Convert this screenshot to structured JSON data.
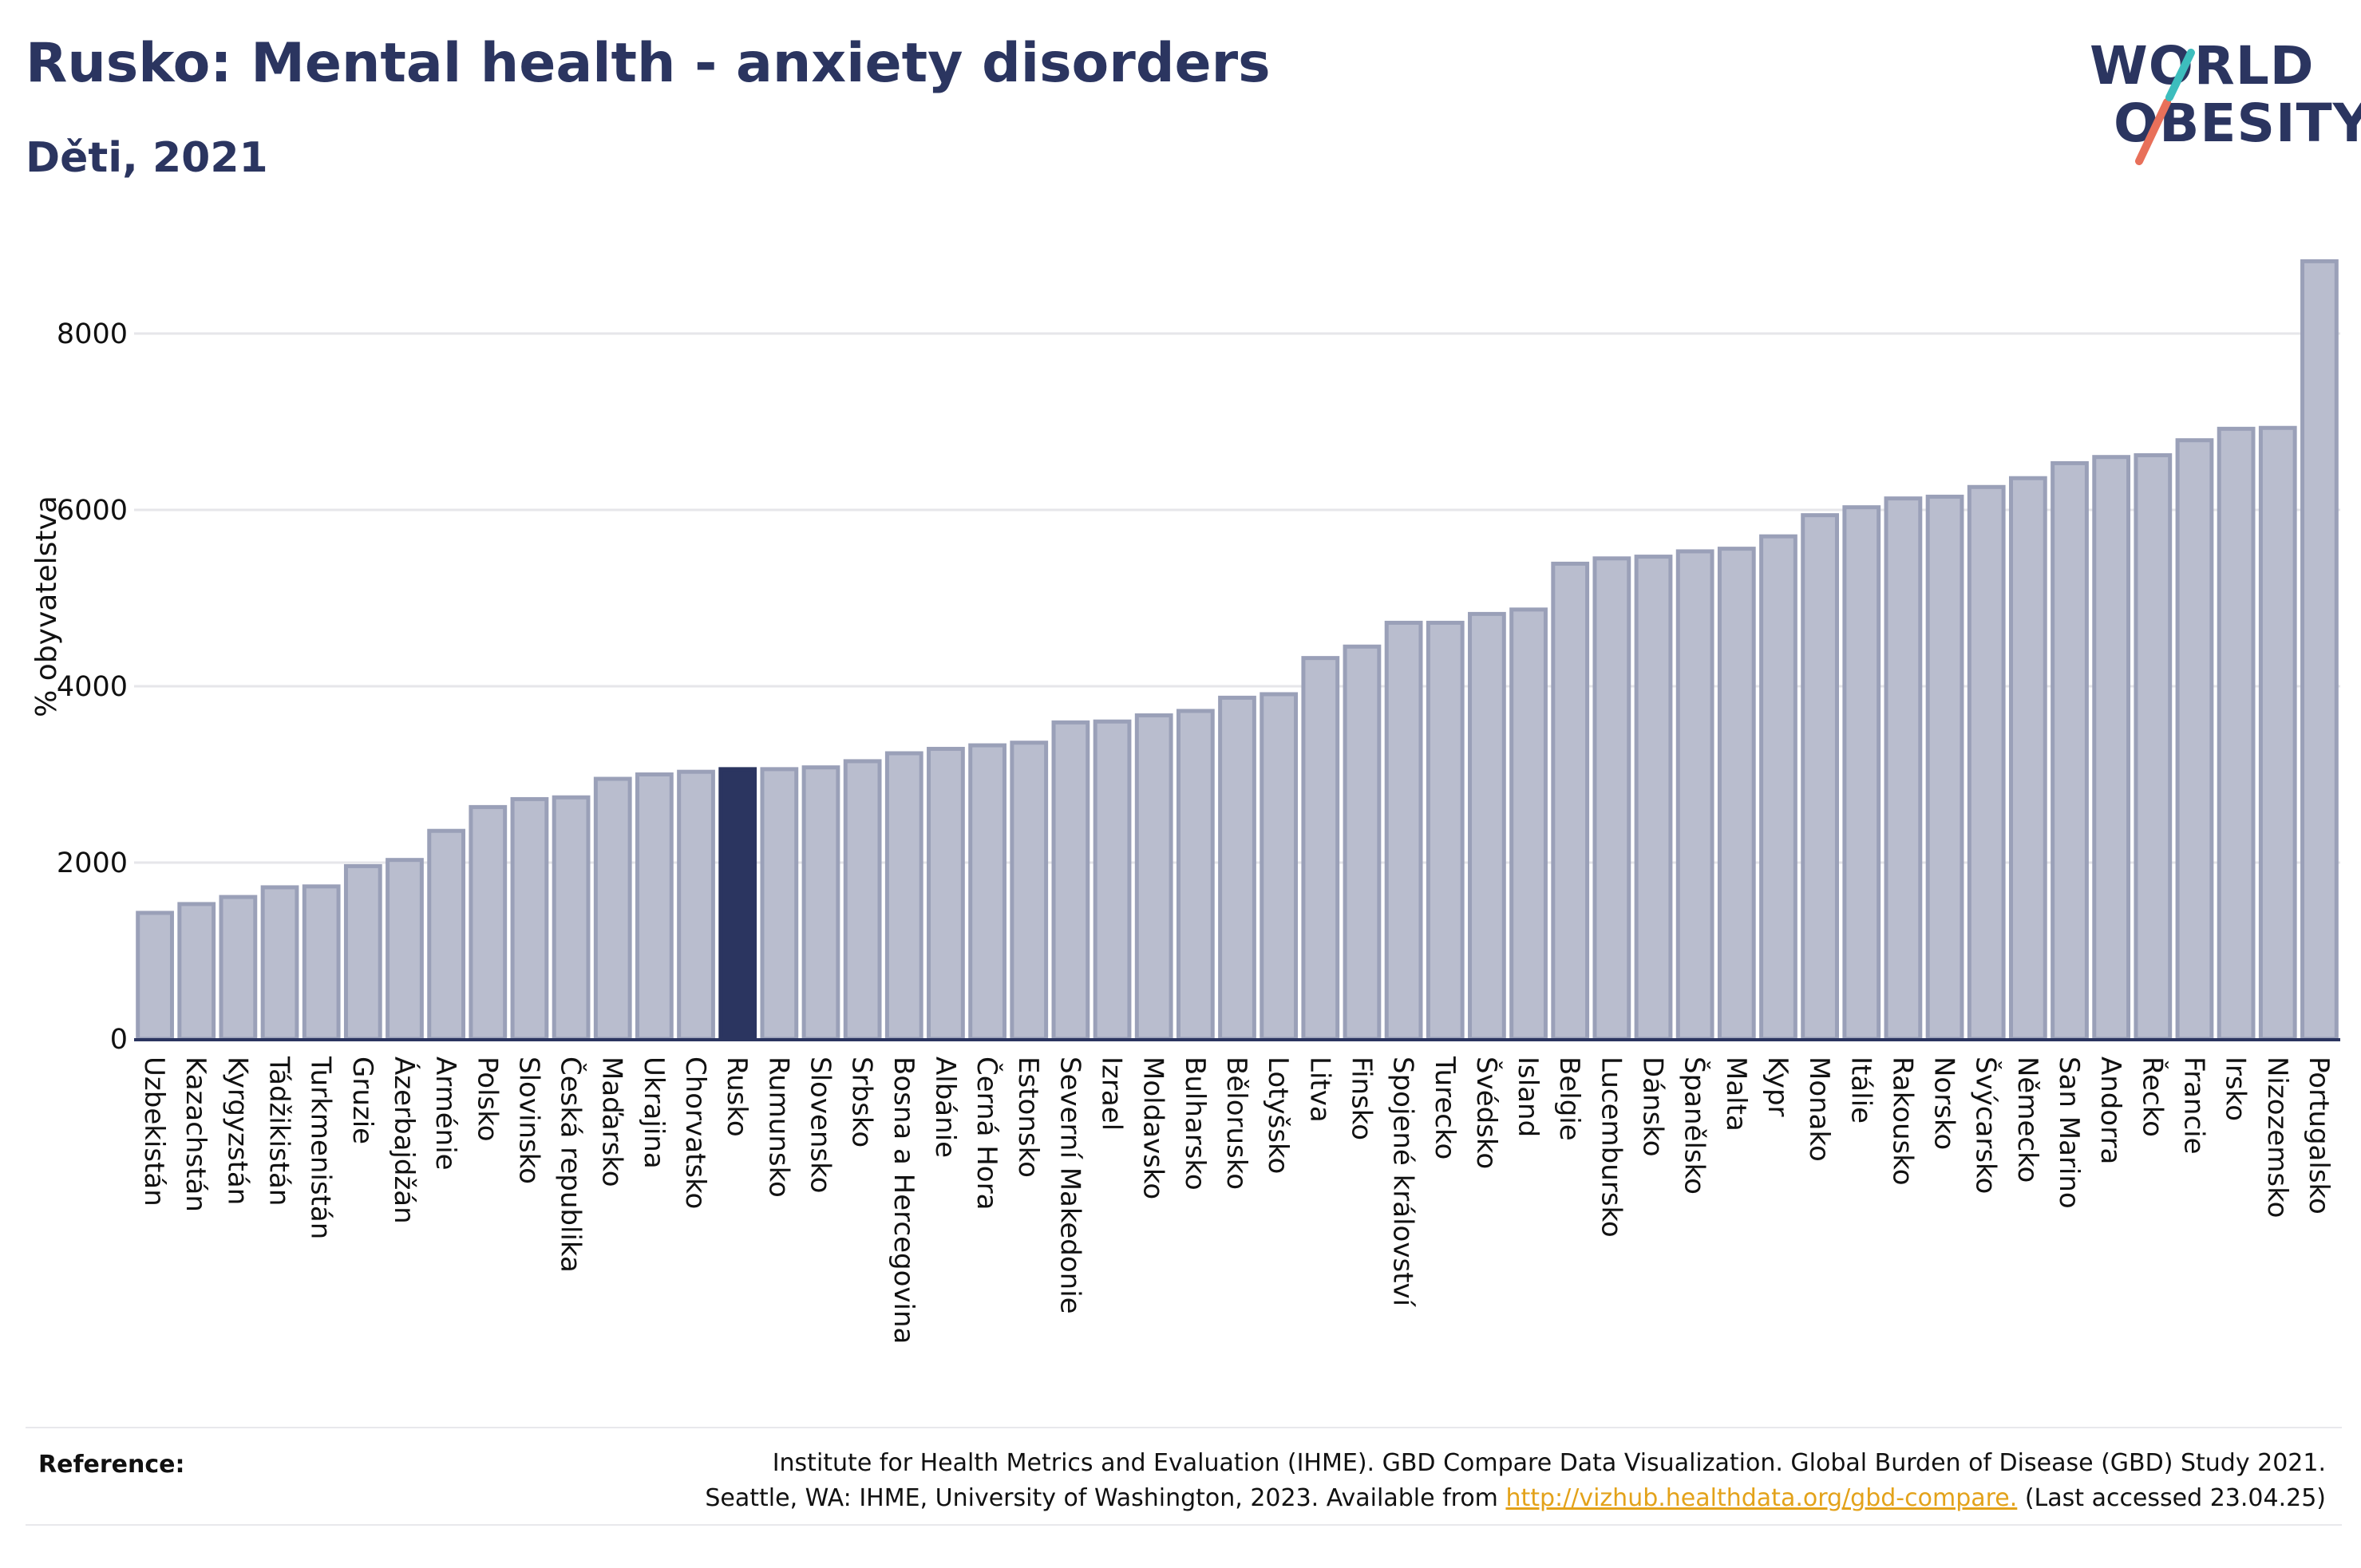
{
  "header": {
    "title": "Rusko: Mental health - anxiety disorders",
    "subtitle": "Děti, 2021"
  },
  "logo": {
    "line1": "WORLD",
    "line2": "OBESITY"
  },
  "colors": {
    "bar": "#b9bdce",
    "bar_stroke": "#9aa0b8",
    "highlight": "#2b3560",
    "text": "#2b3560",
    "grid": "#e6e6ea",
    "logo_teal": "#3dbdbd",
    "logo_coral": "#e8705a",
    "link": "#e3a21a"
  },
  "chart_data": {
    "type": "bar",
    "ylabel": "% obyvatelstva",
    "ylim": [
      0,
      9000
    ],
    "yticks": [
      0,
      2000,
      4000,
      6000,
      8000
    ],
    "highlight": "Rusko",
    "grid": true,
    "categories": [
      "Uzbekistán",
      "Kazachstán",
      "Kyrgyzstán",
      "Tádžikistán",
      "Turkmenistán",
      "Gruzie",
      "Ázerbajdžán",
      "Arménie",
      "Polsko",
      "Slovinsko",
      "Česká republika",
      "Maďarsko",
      "Ukrajina",
      "Chorvatsko",
      "Rusko",
      "Rumunsko",
      "Slovensko",
      "Srbsko",
      "Bosna a Hercegovina",
      "Albánie",
      "Černá Hora",
      "Estonsko",
      "Severní Makedonie",
      "Izrael",
      "Moldavsko",
      "Bulharsko",
      "Bělorusko",
      "Lotyšsko",
      "Litva",
      "Finsko",
      "Spojené království",
      "Turecko",
      "Švédsko",
      "Island",
      "Belgie",
      "Lucembursko",
      "Dánsko",
      "Španělsko",
      "Malta",
      "Kypr",
      "Monako",
      "Itálie",
      "Rakousko",
      "Norsko",
      "Švýcarsko",
      "Německo",
      "San Marino",
      "Andorra",
      "Řecko",
      "Francie",
      "Irsko",
      "Nizozemsko",
      "Portugalsko"
    ],
    "values": [
      1430,
      1530,
      1610,
      1720,
      1730,
      1960,
      2030,
      2360,
      2630,
      2720,
      2740,
      2950,
      3000,
      3030,
      3060,
      3060,
      3080,
      3150,
      3240,
      3290,
      3330,
      3360,
      3590,
      3600,
      3670,
      3720,
      3870,
      3910,
      4320,
      4450,
      4720,
      4720,
      4820,
      4870,
      5390,
      5450,
      5470,
      5530,
      5560,
      5700,
      5940,
      6030,
      6130,
      6150,
      6260,
      6360,
      6530,
      6600,
      6620,
      6790,
      6920,
      6930,
      8820
    ]
  },
  "footer": {
    "reference_label": "Reference:",
    "line1": "Institute for Health Metrics and Evaluation (IHME). GBD Compare Data Visualization. Global Burden of Disease (GBD) Study 2021.",
    "line2_prefix": "Seattle, WA: IHME, University of Washington, 2023. Available from ",
    "link": "http://vizhub.healthdata.org/gbd-compare.",
    "line2_suffix": " (Last accessed 23.04.25)"
  }
}
